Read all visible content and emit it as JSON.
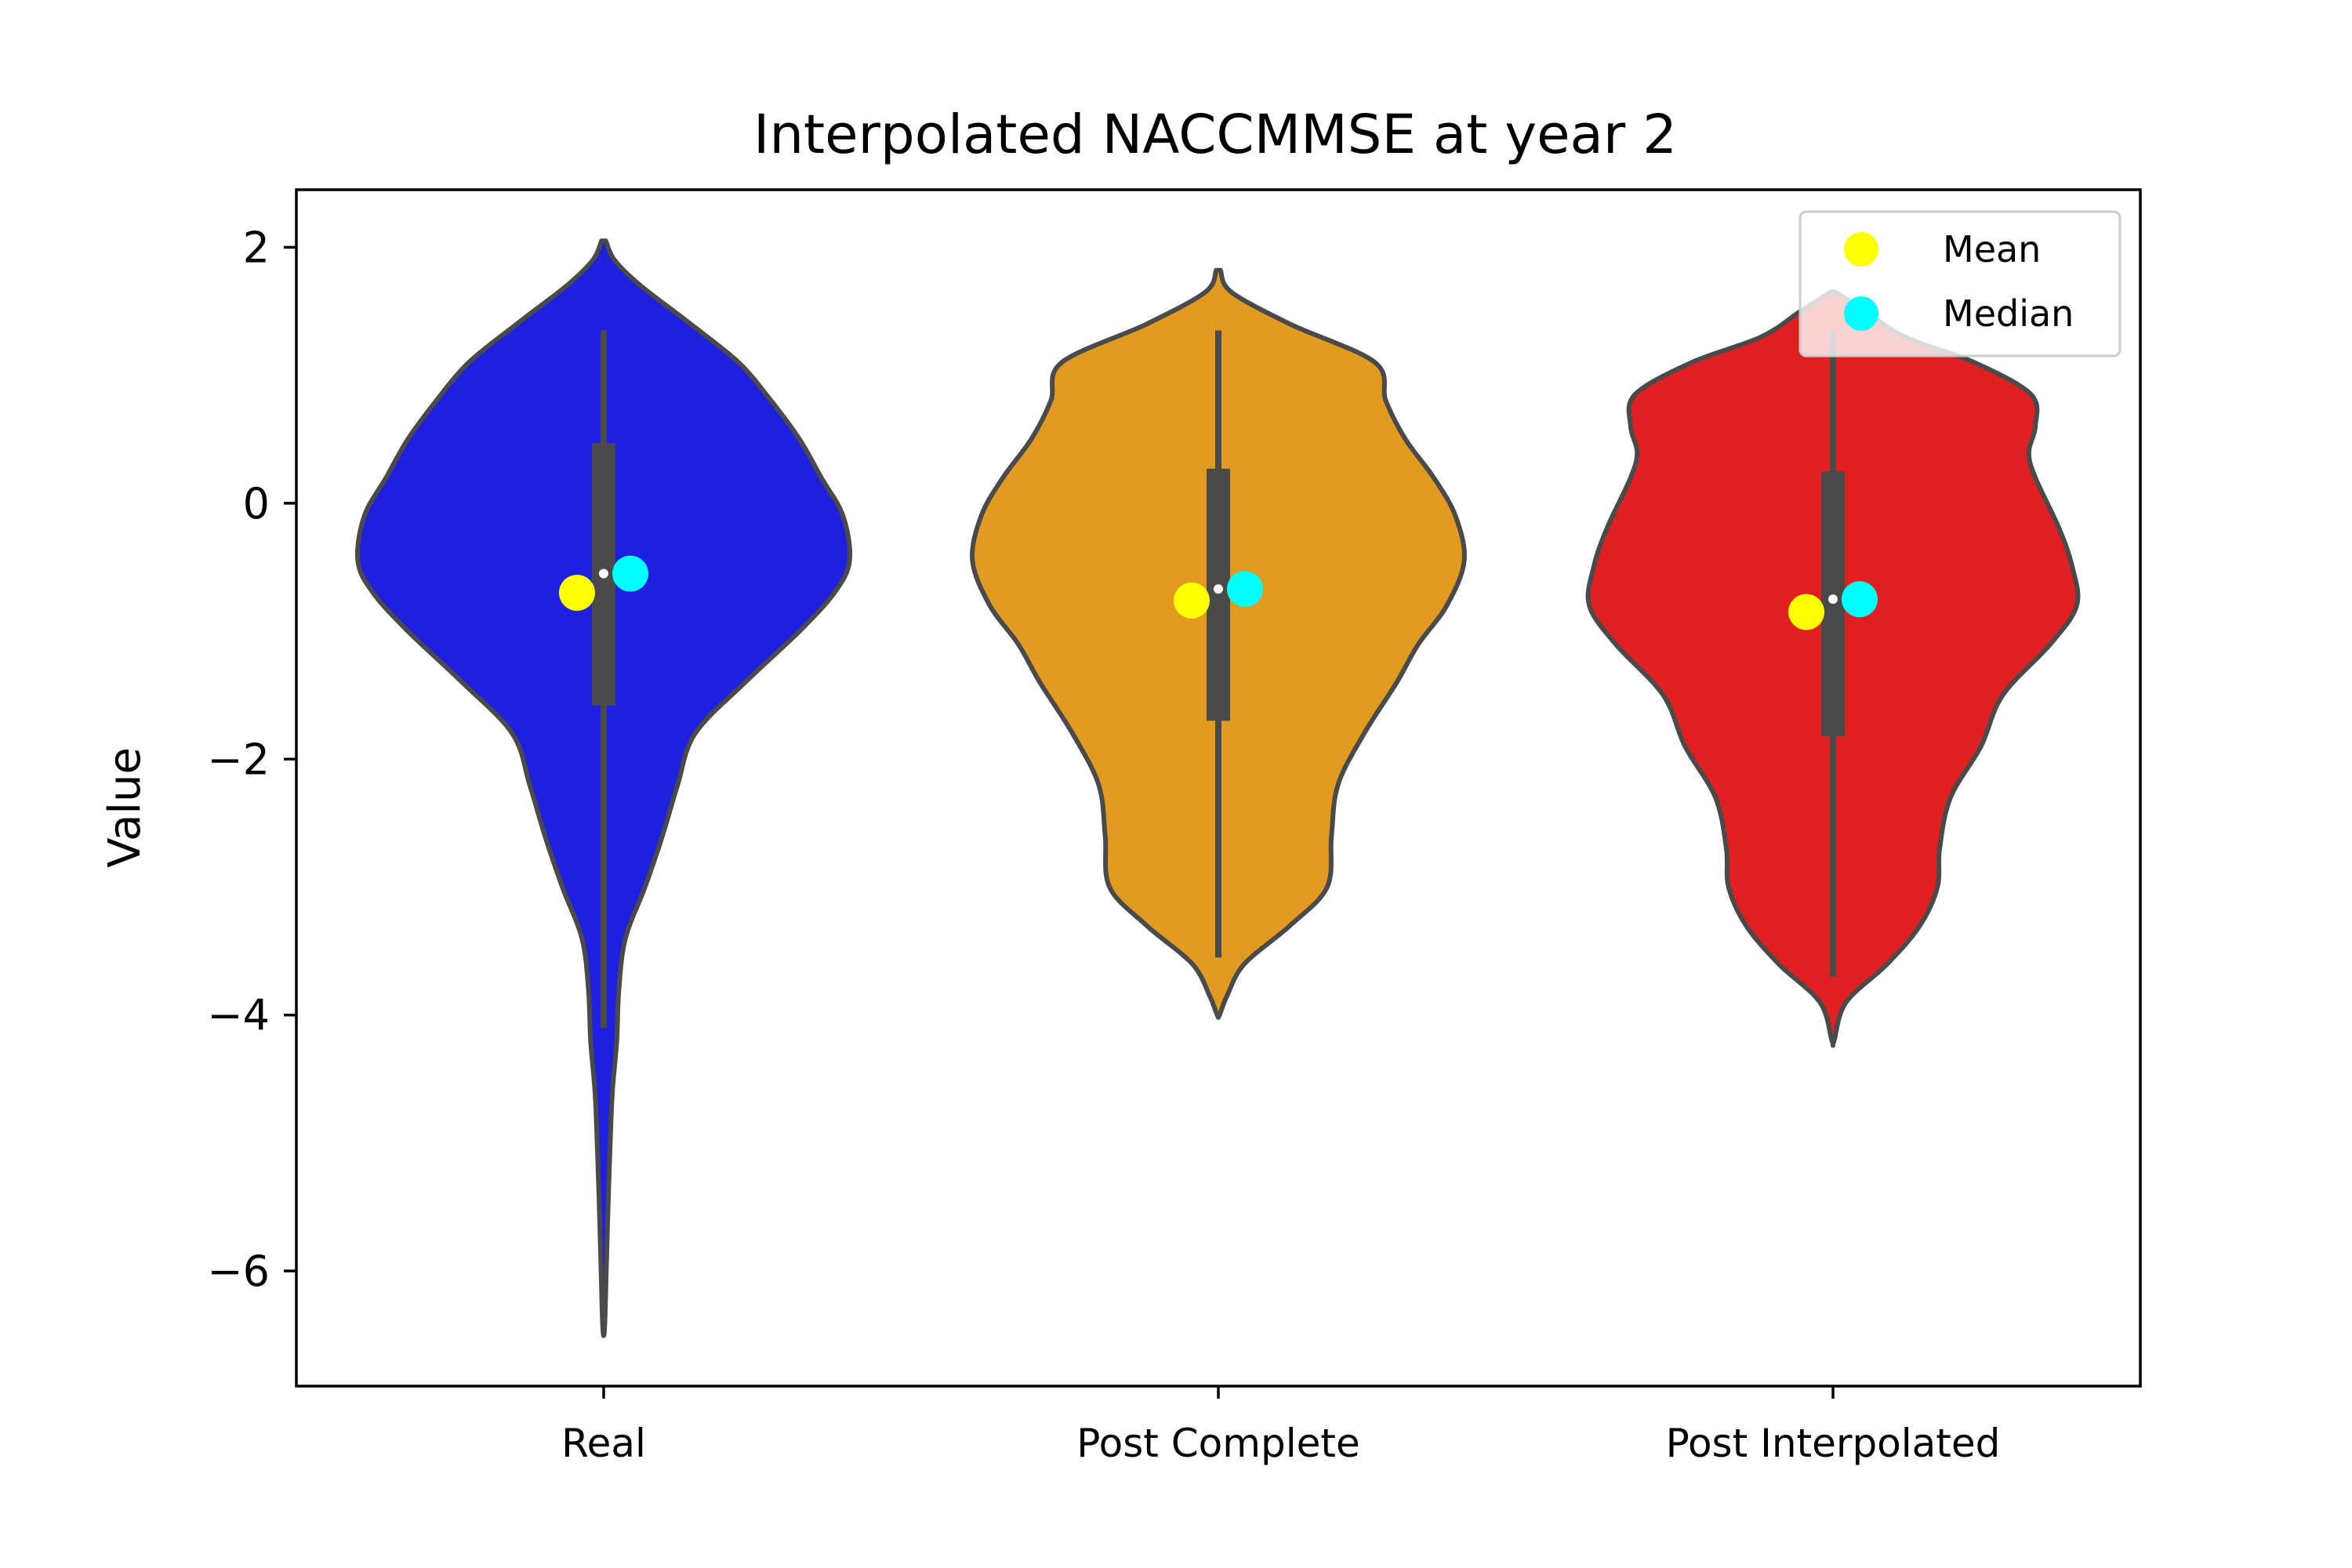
{
  "chart_data": {
    "type": "violin",
    "title": "Interpolated NACCMMSE at year 2",
    "xlabel": "",
    "ylabel": "Value",
    "ylim": [
      -6.9,
      2.45
    ],
    "yticks": [
      2,
      0,
      -2,
      -4,
      -6
    ],
    "ytick_labels": [
      "2",
      "0",
      "−2",
      "−4",
      "−6"
    ],
    "grid": false,
    "legend": {
      "placement": "top-right",
      "entries": [
        {
          "label": "Mean",
          "color": "#ffff00"
        },
        {
          "label": "Median",
          "color": "#00ffff"
        }
      ]
    },
    "categories": [
      "Real",
      "Post Complete",
      "Post Interpolated"
    ],
    "series": [
      {
        "category": "Real",
        "color": "#1f1fe0",
        "mean": -0.7,
        "median": -0.55,
        "q1": -1.58,
        "q3": 0.47,
        "whisker_low": -4.1,
        "whisker_high": 1.35,
        "min": -6.45,
        "max": 2.05,
        "density": [
          [
            2.05,
            0.01
          ],
          [
            1.9,
            0.05
          ],
          [
            1.7,
            0.17
          ],
          [
            1.4,
            0.4
          ],
          [
            1.1,
            0.62
          ],
          [
            0.8,
            0.77
          ],
          [
            0.5,
            0.9
          ],
          [
            0.2,
            1.0
          ],
          [
            -0.1,
            1.1
          ],
          [
            -0.45,
            1.13
          ],
          [
            -0.7,
            1.06
          ],
          [
            -1.0,
            0.9
          ],
          [
            -1.4,
            0.65
          ],
          [
            -1.8,
            0.42
          ],
          [
            -2.2,
            0.34
          ],
          [
            -2.6,
            0.27
          ],
          [
            -3.0,
            0.19
          ],
          [
            -3.4,
            0.1
          ],
          [
            -3.8,
            0.07
          ],
          [
            -4.2,
            0.06
          ],
          [
            -4.6,
            0.04
          ],
          [
            -5.0,
            0.03
          ],
          [
            -5.5,
            0.02
          ],
          [
            -6.0,
            0.012
          ],
          [
            -6.45,
            0.004
          ]
        ]
      },
      {
        "category": "Post Complete",
        "color": "#e09b20",
        "mean": -0.76,
        "median": -0.67,
        "q1": -1.7,
        "q3": 0.27,
        "whisker_low": -3.55,
        "whisker_high": 1.35,
        "min": -4.0,
        "max": 1.82,
        "density": [
          [
            1.82,
            0.01
          ],
          [
            1.65,
            0.06
          ],
          [
            1.4,
            0.33
          ],
          [
            1.1,
            0.72
          ],
          [
            0.8,
            0.77
          ],
          [
            0.5,
            0.86
          ],
          [
            0.2,
            0.99
          ],
          [
            -0.1,
            1.09
          ],
          [
            -0.45,
            1.13
          ],
          [
            -0.8,
            1.05
          ],
          [
            -1.1,
            0.92
          ],
          [
            -1.4,
            0.82
          ],
          [
            -1.8,
            0.67
          ],
          [
            -2.2,
            0.55
          ],
          [
            -2.6,
            0.52
          ],
          [
            -3.0,
            0.5
          ],
          [
            -3.3,
            0.33
          ],
          [
            -3.6,
            0.12
          ],
          [
            -3.85,
            0.04
          ],
          [
            -4.0,
            0.005
          ]
        ]
      },
      {
        "category": "Post Interpolated",
        "color": "#e02020",
        "mean": -0.85,
        "median": -0.75,
        "q1": -1.82,
        "q3": 0.25,
        "whisker_low": -3.7,
        "whisker_high": 1.35,
        "min": -4.2,
        "max": 1.65,
        "density": [
          [
            1.65,
            0.01
          ],
          [
            1.5,
            0.15
          ],
          [
            1.3,
            0.33
          ],
          [
            1.1,
            0.65
          ],
          [
            0.85,
            0.91
          ],
          [
            0.6,
            0.93
          ],
          [
            0.4,
            0.9
          ],
          [
            0.2,
            0.93
          ],
          [
            -0.2,
            1.04
          ],
          [
            -0.5,
            1.1
          ],
          [
            -0.8,
            1.12
          ],
          [
            -1.1,
            1.0
          ],
          [
            -1.5,
            0.78
          ],
          [
            -1.9,
            0.68
          ],
          [
            -2.3,
            0.54
          ],
          [
            -2.7,
            0.49
          ],
          [
            -3.0,
            0.48
          ],
          [
            -3.3,
            0.4
          ],
          [
            -3.6,
            0.25
          ],
          [
            -3.9,
            0.06
          ],
          [
            -4.2,
            0.005
          ]
        ]
      }
    ]
  }
}
